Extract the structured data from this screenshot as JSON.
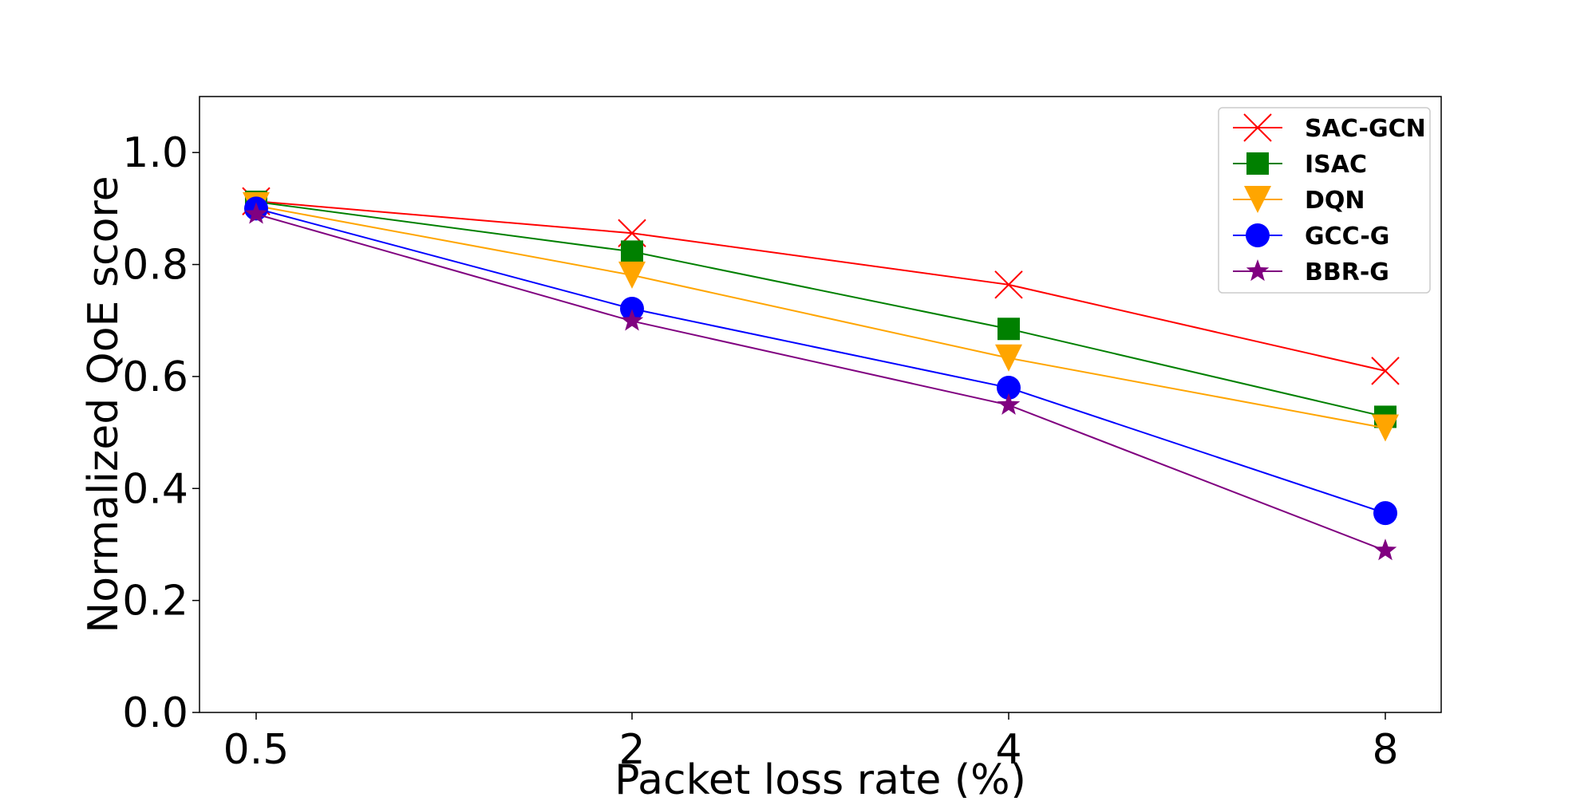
{
  "chart_data": {
    "type": "line",
    "title": "",
    "xlabel": "Packet loss rate (%)",
    "ylabel": "Normalized QoE score",
    "categories": [
      "0.5",
      "2",
      "4",
      "8"
    ],
    "ylim": [
      0.0,
      1.1
    ],
    "yticks": [
      0.0,
      0.2,
      0.4,
      0.6,
      0.8,
      1.0
    ],
    "ytick_labels": [
      "0.0",
      "0.2",
      "0.4",
      "0.6",
      "0.8",
      "1.0"
    ],
    "grid": false,
    "legend_position": "top-right",
    "series": [
      {
        "name": "SAC-GCN",
        "values": [
          0.913,
          0.856,
          0.764,
          0.61
        ],
        "color": "#ff0000",
        "marker": "x"
      },
      {
        "name": "ISAC",
        "values": [
          0.912,
          0.823,
          0.685,
          0.528
        ],
        "color": "#008000",
        "marker": "square"
      },
      {
        "name": "DQN",
        "values": [
          0.905,
          0.781,
          0.633,
          0.508
        ],
        "color": "#ffa500",
        "marker": "triangle-down"
      },
      {
        "name": "GCC-G",
        "values": [
          0.9,
          0.721,
          0.58,
          0.356
        ],
        "color": "#0000ff",
        "marker": "circle"
      },
      {
        "name": "BBR-G",
        "values": [
          0.89,
          0.699,
          0.549,
          0.289
        ],
        "color": "#800080",
        "marker": "star"
      }
    ]
  }
}
